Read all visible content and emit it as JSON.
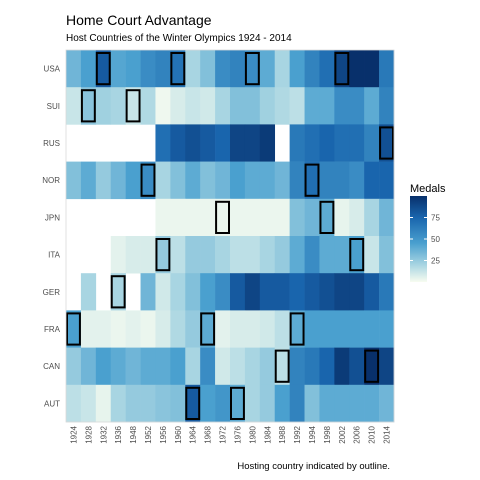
{
  "chart_data": {
    "type": "heatmap",
    "title": "Home Court Advantage",
    "subtitle": "Host Countries of the Winter Olympics 1924 - 2014",
    "caption": "Hosting country indicated by outline.",
    "x": [
      "1924",
      "1928",
      "1932",
      "1936",
      "1948",
      "1952",
      "1956",
      "1960",
      "1964",
      "1968",
      "1972",
      "1976",
      "1980",
      "1984",
      "1988",
      "1992",
      "1994",
      "1998",
      "2002",
      "2006",
      "2010",
      "2014"
    ],
    "y": [
      "USA",
      "SUI",
      "RUS",
      "NOR",
      "JPN",
      "ITA",
      "GER",
      "FRA",
      "CAN",
      "AUT"
    ],
    "values": [
      [
        35,
        45,
        80,
        42,
        45,
        55,
        60,
        68,
        20,
        30,
        55,
        60,
        55,
        40,
        20,
        45,
        60,
        70,
        90,
        100,
        102,
        65
      ],
      [
        12,
        28,
        22,
        20,
        12,
        18,
        2,
        8,
        12,
        10,
        20,
        30,
        30,
        22,
        18,
        15,
        40,
        40,
        55,
        55,
        40,
        60
      ],
      [
        null,
        null,
        null,
        null,
        null,
        null,
        70,
        80,
        85,
        80,
        75,
        90,
        90,
        95,
        null,
        65,
        70,
        75,
        70,
        70,
        60,
        85
      ],
      [
        30,
        40,
        25,
        35,
        45,
        55,
        20,
        30,
        40,
        30,
        35,
        45,
        40,
        40,
        35,
        60,
        70,
        60,
        60,
        55,
        75,
        75
      ],
      [
        null,
        null,
        null,
        null,
        null,
        null,
        3,
        3,
        3,
        3,
        3,
        3,
        3,
        3,
        3,
        30,
        35,
        40,
        4,
        8,
        20,
        35
      ],
      [
        null,
        null,
        null,
        5,
        8,
        8,
        25,
        15,
        25,
        25,
        20,
        15,
        15,
        20,
        25,
        40,
        55,
        40,
        40,
        45,
        12,
        30
      ],
      [
        null,
        20,
        null,
        20,
        null,
        35,
        10,
        20,
        30,
        45,
        55,
        80,
        90,
        80,
        80,
        75,
        80,
        85,
        90,
        90,
        80,
        65
      ],
      [
        45,
        5,
        5,
        3,
        5,
        3,
        8,
        18,
        25,
        40,
        5,
        8,
        8,
        10,
        15,
        40,
        45,
        45,
        45,
        45,
        45,
        45
      ],
      [
        25,
        35,
        45,
        40,
        35,
        40,
        40,
        45,
        20,
        55,
        10,
        15,
        20,
        25,
        15,
        60,
        65,
        75,
        95,
        85,
        100,
        90
      ],
      [
        15,
        12,
        4,
        20,
        25,
        25,
        28,
        30,
        80,
        45,
        50,
        40,
        20,
        25,
        45,
        60,
        30,
        40,
        40,
        40,
        40,
        35
      ]
    ],
    "hosts": [
      [
        "USA",
        "1932"
      ],
      [
        "USA",
        "1960"
      ],
      [
        "USA",
        "1980"
      ],
      [
        "USA",
        "2002"
      ],
      [
        "SUI",
        "1928"
      ],
      [
        "SUI",
        "1948"
      ],
      [
        "RUS",
        "2014"
      ],
      [
        "NOR",
        "1952"
      ],
      [
        "NOR",
        "1994"
      ],
      [
        "JPN",
        "1972"
      ],
      [
        "JPN",
        "1998"
      ],
      [
        "ITA",
        "1956"
      ],
      [
        "ITA",
        "2006"
      ],
      [
        "GER",
        "1936"
      ],
      [
        "FRA",
        "1924"
      ],
      [
        "FRA",
        "1968"
      ],
      [
        "FRA",
        "1992"
      ],
      [
        "CAN",
        "1988"
      ],
      [
        "CAN",
        "2010"
      ],
      [
        "AUT",
        "1964"
      ],
      [
        "AUT",
        "1976"
      ]
    ],
    "legend": {
      "title": "Medals",
      "ticks": [
        25,
        50,
        75
      ],
      "range": [
        0,
        100
      ],
      "placement": "right"
    },
    "colors": {
      "low": "#f7fcf0",
      "mid_low": "#a8d5e2",
      "mid": "#4aa0cf",
      "mid_high": "#1965ad",
      "high": "#08306b",
      "host_outline": "#000000",
      "panel_border": "#d9d9d9"
    },
    "grid": false
  }
}
